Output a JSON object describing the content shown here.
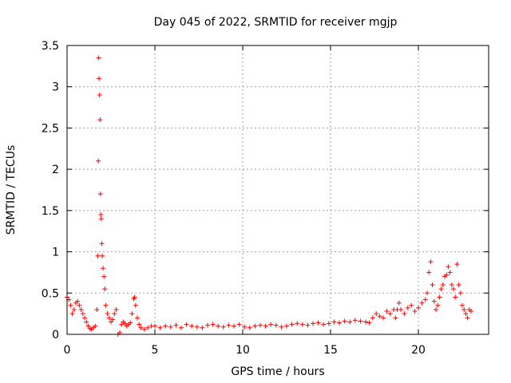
{
  "chart_data": {
    "type": "scatter",
    "title": "Day 045 of 2022, SRMTID for receiver mgjp",
    "xlabel": "GPS time / hours",
    "ylabel": "SRMTID / TECUs",
    "xlim": [
      0,
      24
    ],
    "ylim": [
      0,
      3.5
    ],
    "xticks": [
      0,
      5,
      10,
      15,
      20
    ],
    "xtick_labels": [
      "0",
      "5",
      "10",
      "15",
      "20"
    ],
    "yticks": [
      0,
      0.5,
      1,
      1.5,
      2,
      2.5,
      3,
      3.5
    ],
    "ytick_labels": [
      "0",
      "0.5",
      "1",
      "1.5",
      "2",
      "2.5",
      "3",
      "3.5"
    ],
    "grid": true,
    "marker": "+",
    "color": "#ff0000",
    "series": [
      {
        "name": "mgjp",
        "x": [
          0.0,
          0.1,
          0.2,
          0.3,
          0.4,
          0.5,
          0.6,
          0.7,
          0.8,
          0.9,
          1.0,
          1.1,
          1.2,
          1.3,
          1.4,
          1.5,
          1.6,
          1.7,
          1.75,
          1.78,
          1.8,
          1.82,
          1.85,
          1.88,
          1.9,
          1.92,
          1.95,
          1.98,
          2.0,
          2.05,
          2.1,
          2.15,
          2.2,
          2.3,
          2.4,
          2.5,
          2.6,
          2.7,
          2.8,
          2.9,
          3.0,
          3.1,
          3.2,
          3.3,
          3.4,
          3.5,
          3.6,
          3.7,
          3.8,
          3.85,
          3.9,
          4.0,
          4.1,
          4.2,
          4.4,
          4.6,
          4.8,
          5.0,
          5.3,
          5.6,
          5.9,
          6.2,
          6.5,
          6.8,
          7.1,
          7.4,
          7.7,
          8.0,
          8.3,
          8.6,
          8.9,
          9.2,
          9.5,
          9.8,
          10.1,
          10.4,
          10.7,
          11.0,
          11.3,
          11.6,
          11.9,
          12.2,
          12.5,
          12.8,
          13.1,
          13.4,
          13.7,
          14.0,
          14.3,
          14.6,
          14.9,
          15.2,
          15.5,
          15.8,
          16.1,
          16.4,
          16.7,
          17.0,
          17.2,
          17.4,
          17.6,
          17.8,
          18.0,
          18.2,
          18.4,
          18.6,
          18.7,
          18.8,
          18.9,
          19.0,
          19.2,
          19.4,
          19.6,
          19.8,
          20.0,
          20.2,
          20.4,
          20.5,
          20.6,
          20.7,
          20.8,
          20.9,
          21.0,
          21.1,
          21.2,
          21.3,
          21.4,
          21.5,
          21.6,
          21.7,
          21.8,
          21.9,
          22.0,
          22.1,
          22.2,
          22.3,
          22.4,
          22.5,
          22.6,
          22.7,
          22.8,
          22.9,
          23.0
        ],
        "y": [
          0.45,
          0.42,
          0.35,
          0.25,
          0.3,
          0.38,
          0.4,
          0.35,
          0.3,
          0.25,
          0.2,
          0.15,
          0.1,
          0.07,
          0.06,
          0.08,
          0.1,
          0.3,
          0.95,
          2.1,
          3.35,
          3.1,
          2.9,
          2.6,
          1.7,
          1.45,
          1.4,
          1.1,
          0.95,
          0.8,
          0.7,
          0.55,
          0.35,
          0.25,
          0.2,
          0.15,
          0.18,
          0.25,
          0.3,
          0.0,
          0.02,
          0.12,
          0.15,
          0.13,
          0.1,
          0.12,
          0.14,
          0.25,
          0.43,
          0.45,
          0.35,
          0.2,
          0.12,
          0.08,
          0.06,
          0.08,
          0.1,
          0.1,
          0.08,
          0.1,
          0.09,
          0.11,
          0.08,
          0.12,
          0.1,
          0.09,
          0.08,
          0.11,
          0.12,
          0.1,
          0.09,
          0.11,
          0.1,
          0.12,
          0.09,
          0.08,
          0.1,
          0.11,
          0.1,
          0.12,
          0.11,
          0.09,
          0.1,
          0.12,
          0.13,
          0.12,
          0.11,
          0.13,
          0.14,
          0.12,
          0.13,
          0.15,
          0.14,
          0.16,
          0.15,
          0.17,
          0.16,
          0.15,
          0.14,
          0.2,
          0.25,
          0.22,
          0.2,
          0.28,
          0.25,
          0.3,
          0.2,
          0.3,
          0.38,
          0.3,
          0.25,
          0.32,
          0.35,
          0.28,
          0.32,
          0.38,
          0.42,
          0.5,
          0.75,
          0.88,
          0.6,
          0.4,
          0.3,
          0.35,
          0.45,
          0.55,
          0.6,
          0.7,
          0.72,
          0.82,
          0.75,
          0.6,
          0.55,
          0.45,
          0.85,
          0.6,
          0.5,
          0.35,
          0.3,
          0.25,
          0.2,
          0.3,
          0.28
        ]
      }
    ]
  }
}
